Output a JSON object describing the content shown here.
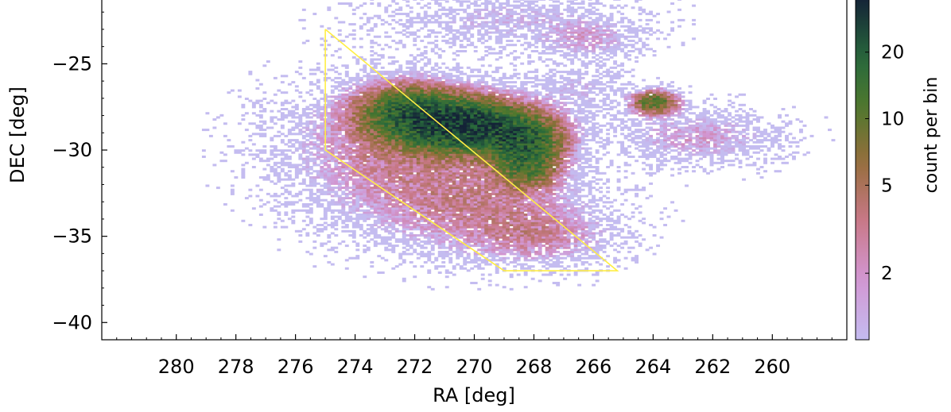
{
  "chart_data": {
    "type": "heatmap",
    "xlabel": "RA [deg]",
    "ylabel": "DEC [deg]",
    "colorbar_label": "count per bin",
    "x_reversed": true,
    "xlim": [
      282.5,
      257.5
    ],
    "ylim": [
      -41,
      -21.3
    ],
    "x_ticks": [
      280,
      278,
      276,
      274,
      272,
      270,
      268,
      266,
      264,
      262,
      260
    ],
    "y_ticks": [
      -25,
      -30,
      -35,
      -40
    ],
    "colorbar": {
      "scale": "log",
      "range": [
        1,
        35
      ],
      "ticks": [
        2,
        5,
        10,
        20
      ]
    },
    "density_clusters": [
      {
        "ra": 270.5,
        "dec": -28.6,
        "sigma_ra": 1.3,
        "sigma_dec": 0.9,
        "peak": 30
      },
      {
        "ra": 272.3,
        "dec": -27.8,
        "sigma_ra": 1.0,
        "sigma_dec": 0.9,
        "peak": 14
      },
      {
        "ra": 268.4,
        "dec": -29.6,
        "sigma_ra": 0.8,
        "sigma_dec": 0.9,
        "peak": 18
      },
      {
        "ra": 268.3,
        "dec": -31.2,
        "sigma_ra": 0.6,
        "sigma_dec": 0.7,
        "peak": 9
      },
      {
        "ra": 272.5,
        "dec": -30.0,
        "sigma_ra": 2.2,
        "sigma_dec": 2.2,
        "peak": 3
      },
      {
        "ra": 270.0,
        "dec": -33.2,
        "sigma_ra": 2.2,
        "sigma_dec": 1.6,
        "peak": 2.6
      },
      {
        "ra": 268.0,
        "dec": -35.0,
        "sigma_ra": 1.5,
        "sigma_dec": 1.0,
        "peak": 2.3
      },
      {
        "ra": 264.0,
        "dec": -27.3,
        "sigma_ra": 0.45,
        "sigma_dec": 0.4,
        "peak": 12
      },
      {
        "ra": 262.6,
        "dec": -29.3,
        "sigma_ra": 1.6,
        "sigma_dec": 0.9,
        "peak": 1.8
      },
      {
        "ra": 266.2,
        "dec": -23.6,
        "sigma_ra": 1.0,
        "sigma_dec": 0.7,
        "peak": 1.5
      },
      {
        "ra": 269.0,
        "dec": -22.5,
        "sigma_ra": 2.5,
        "sigma_dec": 1.0,
        "peak": 1.1
      },
      {
        "ra": 266.5,
        "dec": -26.5,
        "sigma_ra": 1.0,
        "sigma_dec": 1.0,
        "peak": 1.0
      }
    ],
    "selection_polygon": [
      [
        275.0,
        -23.0
      ],
      [
        265.2,
        -37.0
      ],
      [
        269.0,
        -37.0
      ],
      [
        275.0,
        -30.0
      ],
      [
        275.0,
        -23.0
      ]
    ],
    "colors": {
      "polygon": "#ffee44",
      "axis": "#000000"
    }
  }
}
